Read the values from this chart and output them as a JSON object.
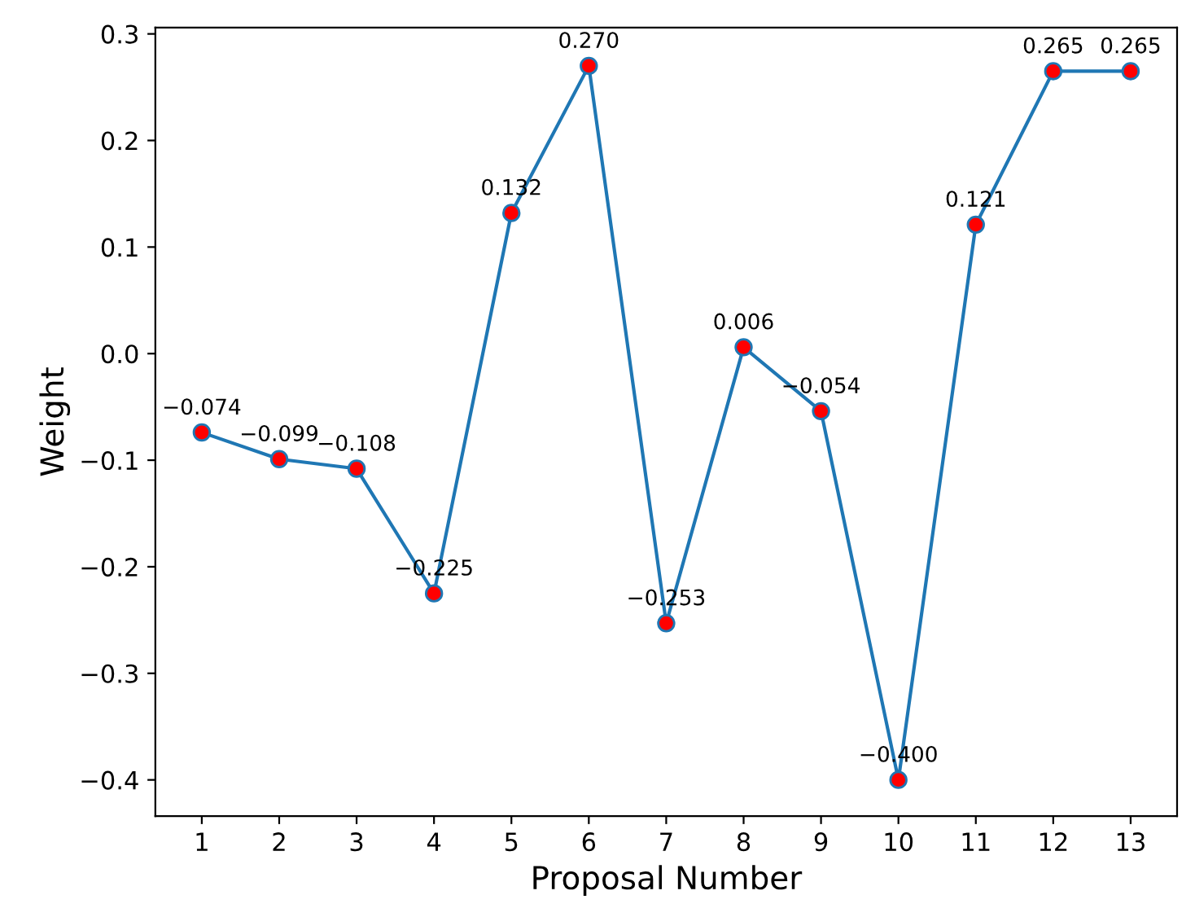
{
  "chart_data": {
    "type": "line",
    "xlabel": "Proposal Number",
    "ylabel": "Weight",
    "x": [
      1,
      2,
      3,
      4,
      5,
      6,
      7,
      8,
      9,
      10,
      11,
      12,
      13
    ],
    "series": [
      {
        "color": "#1f77b4",
        "colors": [
          "#ff0000",
          "#ff0000",
          "#ff0000",
          "#ff0000",
          "#ff0000",
          "#ff0000",
          "#ff0000",
          "#ff0000",
          "#ff0000",
          "#ff0000",
          "#ff0000",
          "#ff0000",
          "#ff0000"
        ],
        "values": [
          -0.074,
          -0.099,
          -0.108,
          -0.225,
          0.132,
          0.27,
          -0.253,
          0.006,
          -0.054,
          -0.4,
          0.121,
          0.265,
          0.265
        ],
        "value_labels": [
          "−0.074",
          "−0.099",
          "−0.108",
          "−0.225",
          "0.132",
          "0.270",
          "−0.253",
          "0.006",
          "−0.054",
          "−0.400",
          "0.121",
          "0.265",
          "0.265"
        ]
      }
    ],
    "xlim": [
      0.4,
      13.6
    ],
    "xticks": [
      1,
      2,
      3,
      4,
      5,
      6,
      7,
      8,
      9,
      10,
      11,
      12,
      13
    ],
    "ylim": [
      -0.434,
      0.306
    ],
    "yticks": [
      {
        "value": -0.4,
        "label": "−0.4"
      },
      {
        "value": -0.3,
        "label": "−0.3"
      },
      {
        "value": -0.2,
        "label": "−0.2"
      },
      {
        "value": -0.1,
        "label": "−0.1"
      },
      {
        "value": 0.0,
        "label": "0.0"
      },
      {
        "value": 0.1,
        "label": "0.1"
      },
      {
        "value": 0.2,
        "label": "0.2"
      },
      {
        "value": 0.3,
        "label": "0.3"
      }
    ],
    "marker": "circle",
    "line_style": "solid",
    "grid": false,
    "legend": false
  }
}
